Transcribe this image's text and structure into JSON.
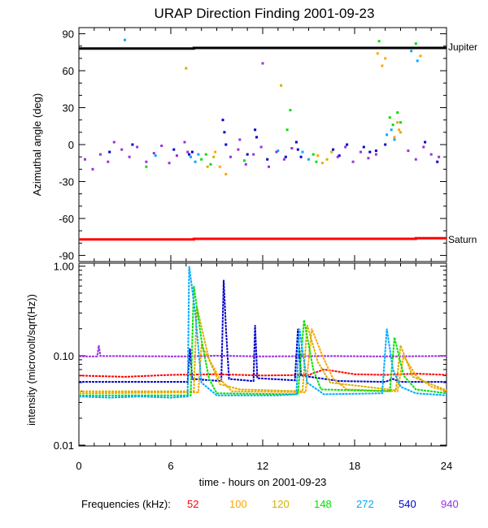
{
  "chart_data": [
    {
      "type": "scatter",
      "title": "URAP Direction Finding  2001-09-23",
      "ylabel": "Azimuthal angle (deg)",
      "xlabel": "",
      "xlim": [
        0,
        24
      ],
      "ylim": [
        -95,
        95
      ],
      "yticks": [
        90,
        60,
        30,
        0,
        -30,
        -60,
        -90
      ],
      "ytick_labels": [
        "90",
        "60",
        "30",
        "0",
        "-30",
        "-60",
        "-90"
      ],
      "reference_lines": [
        {
          "name": "Jupiter",
          "color": "#000000",
          "points": [
            [
              0,
              78
            ],
            [
              7.5,
              78
            ],
            [
              7.5,
              78.5
            ],
            [
              24,
              78.5
            ]
          ]
        },
        {
          "name": "Saturn",
          "color": "#ff0000",
          "points": [
            [
              0,
              -77
            ],
            [
              7.5,
              -77
            ],
            [
              7.5,
              -76.5
            ],
            [
              22,
              -76.5
            ],
            [
              22,
              -76
            ],
            [
              24,
              -76
            ]
          ]
        }
      ],
      "series": [
        {
          "name": "272",
          "color": "#00aaff",
          "points": [
            [
              3.0,
              85
            ],
            [
              7.3,
              -10
            ],
            [
              7.6,
              -14
            ],
            [
              7.8,
              -8
            ],
            [
              15.0,
              -12
            ],
            [
              14.6,
              -6
            ],
            [
              20.1,
              8
            ],
            [
              20.4,
              12
            ],
            [
              20.6,
              4
            ],
            [
              21.7,
              76
            ],
            [
              22.1,
              68
            ],
            [
              5.0,
              -9
            ],
            [
              13.0,
              -5
            ]
          ]
        },
        {
          "name": "148",
          "color": "#00e000",
          "points": [
            [
              8.0,
              -12
            ],
            [
              8.3,
              -8
            ],
            [
              8.6,
              -16
            ],
            [
              15.3,
              -8
            ],
            [
              15.5,
              -14
            ],
            [
              20.3,
              22
            ],
            [
              20.5,
              16
            ],
            [
              20.8,
              26
            ],
            [
              21.0,
              18
            ],
            [
              13.6,
              12
            ],
            [
              13.8,
              28
            ],
            [
              19.6,
              84
            ],
            [
              22.0,
              82
            ],
            [
              4.4,
              -18
            ],
            [
              10.8,
              -13
            ]
          ]
        },
        {
          "name": "100",
          "color": "#ffa500",
          "points": [
            [
              19.5,
              74
            ],
            [
              19.8,
              64
            ],
            [
              20.0,
              70
            ],
            [
              20.6,
              6
            ],
            [
              20.9,
              12
            ],
            [
              15.6,
              -9
            ],
            [
              15.9,
              -15
            ],
            [
              8.9,
              -6
            ],
            [
              9.2,
              -18
            ],
            [
              9.6,
              -24
            ],
            [
              22.3,
              72
            ]
          ]
        },
        {
          "name": "120",
          "color": "#d4b000",
          "points": [
            [
              20.8,
              18
            ],
            [
              21.0,
              10
            ],
            [
              8.4,
              -18
            ],
            [
              8.8,
              -10
            ],
            [
              16.2,
              -12
            ],
            [
              16.5,
              -6
            ],
            [
              7.0,
              62
            ],
            [
              13.2,
              48
            ]
          ]
        },
        {
          "name": "540",
          "color": "#0000cc",
          "points": [
            [
              7.2,
              -8
            ],
            [
              7.4,
              -6
            ],
            [
              9.4,
              20
            ],
            [
              9.5,
              10
            ],
            [
              9.6,
              0
            ],
            [
              11.5,
              12
            ],
            [
              11.6,
              6
            ],
            [
              14.3,
              -4
            ],
            [
              14.5,
              -10
            ],
            [
              14.2,
              2
            ],
            [
              16.6,
              -4
            ],
            [
              17.5,
              0
            ],
            [
              18.6,
              -2
            ],
            [
              19.0,
              -6
            ],
            [
              20.0,
              0
            ],
            [
              23.4,
              -14
            ],
            [
              12.3,
              -12
            ],
            [
              3.5,
              0
            ],
            [
              6.2,
              -4
            ],
            [
              17.0,
              -9
            ],
            [
              19.4,
              -5
            ],
            [
              22.6,
              2
            ],
            [
              11.0,
              -8
            ],
            [
              13.5,
              -10
            ],
            [
              2.0,
              -6
            ]
          ]
        },
        {
          "name": "940",
          "color": "#9a30e0",
          "points": [
            [
              0.4,
              -12
            ],
            [
              0.9,
              -20
            ],
            [
              1.4,
              -8
            ],
            [
              1.9,
              -14
            ],
            [
              2.3,
              2
            ],
            [
              2.8,
              -4
            ],
            [
              3.3,
              -10
            ],
            [
              3.8,
              -2
            ],
            [
              4.4,
              -14
            ],
            [
              4.9,
              -7
            ],
            [
              5.4,
              -1
            ],
            [
              5.9,
              -15
            ],
            [
              6.4,
              -9
            ],
            [
              6.9,
              2
            ],
            [
              7.1,
              -6
            ],
            [
              9.9,
              -10
            ],
            [
              10.4,
              -4
            ],
            [
              10.9,
              -16
            ],
            [
              11.4,
              -8
            ],
            [
              11.9,
              -2
            ],
            [
              12.4,
              -18
            ],
            [
              12.9,
              -6
            ],
            [
              13.4,
              -12
            ],
            [
              13.9,
              -3
            ],
            [
              16.9,
              -10
            ],
            [
              17.4,
              -2
            ],
            [
              17.9,
              -14
            ],
            [
              18.4,
              -6
            ],
            [
              18.9,
              -11
            ],
            [
              19.4,
              -8
            ],
            [
              21.5,
              -5
            ],
            [
              22.0,
              -12
            ],
            [
              22.5,
              -2
            ],
            [
              23.0,
              -8
            ],
            [
              23.5,
              -10
            ],
            [
              12.0,
              66
            ],
            [
              10.5,
              4
            ]
          ]
        },
        {
          "name": "52",
          "color": "#ff0000",
          "points": []
        }
      ],
      "labels": [
        "Jupiter",
        "Saturn"
      ]
    },
    {
      "type": "line",
      "title": "",
      "ylabel": "intensity (microvolt/sqrt(Hz))",
      "xlabel": "time - hours on 2001-09-23",
      "xlim": [
        0,
        24
      ],
      "xticks": [
        0,
        6,
        12,
        18,
        24
      ],
      "ylim": [
        0.01,
        1.0
      ],
      "yscale": "log",
      "yticks": [
        1.0,
        0.1,
        0.01
      ],
      "ytick_labels": [
        "1.00",
        "0.10",
        "0.01"
      ],
      "series": [
        {
          "name": "940",
          "color": "#9a30e0",
          "points": [
            [
              0,
              0.098
            ],
            [
              1.2,
              0.098
            ],
            [
              1.3,
              0.13
            ],
            [
              1.4,
              0.099
            ],
            [
              7.0,
              0.098
            ],
            [
              9.0,
              0.1
            ],
            [
              12.0,
              0.098
            ],
            [
              16.0,
              0.099
            ],
            [
              20.0,
              0.098
            ],
            [
              24,
              0.099
            ]
          ]
        },
        {
          "name": "52",
          "color": "#ff0000",
          "points": [
            [
              0,
              0.06
            ],
            [
              3,
              0.058
            ],
            [
              6,
              0.061
            ],
            [
              9,
              0.062
            ],
            [
              12,
              0.06
            ],
            [
              15,
              0.061
            ],
            [
              16,
              0.07
            ],
            [
              17,
              0.066
            ],
            [
              18,
              0.062
            ],
            [
              20,
              0.061
            ],
            [
              22,
              0.063
            ],
            [
              24,
              0.061
            ]
          ]
        },
        {
          "name": "540",
          "color": "#0000cc",
          "points": [
            [
              0,
              0.051
            ],
            [
              7.1,
              0.051
            ],
            [
              7.25,
              0.12
            ],
            [
              7.4,
              0.055
            ],
            [
              9.3,
              0.052
            ],
            [
              9.45,
              0.7
            ],
            [
              9.6,
              0.2
            ],
            [
              9.8,
              0.055
            ],
            [
              11.4,
              0.052
            ],
            [
              11.5,
              0.22
            ],
            [
              11.65,
              0.056
            ],
            [
              14.1,
              0.053
            ],
            [
              14.3,
              0.2
            ],
            [
              14.5,
              0.06
            ],
            [
              17,
              0.052
            ],
            [
              20,
              0.051
            ],
            [
              20.5,
              0.055
            ],
            [
              21,
              0.051
            ],
            [
              24,
              0.051
            ]
          ]
        },
        {
          "name": "100",
          "color": "#ffa500",
          "points": [
            [
              0,
              0.038
            ],
            [
              7.8,
              0.039
            ],
            [
              8.0,
              0.13
            ],
            [
              8.6,
              0.085
            ],
            [
              9.2,
              0.055
            ],
            [
              10,
              0.04
            ],
            [
              14.8,
              0.039
            ],
            [
              15.2,
              0.2
            ],
            [
              15.9,
              0.1
            ],
            [
              16.6,
              0.055
            ],
            [
              17.5,
              0.042
            ],
            [
              20.8,
              0.04
            ],
            [
              21.2,
              0.1
            ],
            [
              22,
              0.06
            ],
            [
              23,
              0.045
            ],
            [
              24,
              0.04
            ]
          ]
        },
        {
          "name": "120",
          "color": "#d4b000",
          "points": [
            [
              0,
              0.04
            ],
            [
              7.5,
              0.04
            ],
            [
              7.7,
              0.35
            ],
            [
              8.5,
              0.09
            ],
            [
              9.2,
              0.048
            ],
            [
              10.5,
              0.042
            ],
            [
              14.6,
              0.04
            ],
            [
              14.9,
              0.22
            ],
            [
              15.6,
              0.085
            ],
            [
              16.4,
              0.05
            ],
            [
              20.7,
              0.041
            ],
            [
              21.0,
              0.13
            ],
            [
              21.8,
              0.058
            ],
            [
              24,
              0.041
            ]
          ]
        },
        {
          "name": "148",
          "color": "#00e000",
          "points": [
            [
              0,
              0.036
            ],
            [
              7.3,
              0.036
            ],
            [
              7.5,
              0.6
            ],
            [
              8.0,
              0.15
            ],
            [
              8.5,
              0.055
            ],
            [
              9.0,
              0.038
            ],
            [
              14.3,
              0.037
            ],
            [
              14.7,
              0.25
            ],
            [
              15.3,
              0.07
            ],
            [
              15.8,
              0.042
            ],
            [
              20.3,
              0.04
            ],
            [
              20.6,
              0.16
            ],
            [
              21.2,
              0.06
            ],
            [
              22,
              0.042
            ],
            [
              24,
              0.038
            ]
          ]
        },
        {
          "name": "272",
          "color": "#00aaff",
          "points": [
            [
              0,
              0.035
            ],
            [
              2,
              0.034
            ],
            [
              4,
              0.035
            ],
            [
              6,
              0.034
            ],
            [
              7.1,
              0.035
            ],
            [
              7.2,
              1.0
            ],
            [
              7.6,
              0.3
            ],
            [
              8.0,
              0.05
            ],
            [
              9.0,
              0.036
            ],
            [
              13.0,
              0.036
            ],
            [
              14.2,
              0.037
            ],
            [
              14.4,
              0.2
            ],
            [
              14.9,
              0.05
            ],
            [
              16,
              0.037
            ],
            [
              19.8,
              0.038
            ],
            [
              20.1,
              0.2
            ],
            [
              20.5,
              0.07
            ],
            [
              21.0,
              0.045
            ],
            [
              22,
              0.038
            ],
            [
              24,
              0.036
            ]
          ]
        }
      ]
    }
  ],
  "legend": {
    "label": "Frequencies (kHz):",
    "items": [
      {
        "value": "52",
        "color": "#ff0000"
      },
      {
        "value": "100",
        "color": "#ffa500"
      },
      {
        "value": "120",
        "color": "#d4b000"
      },
      {
        "value": "148",
        "color": "#00e000"
      },
      {
        "value": "272",
        "color": "#00aaff"
      },
      {
        "value": "540",
        "color": "#0000cc"
      },
      {
        "value": "940",
        "color": "#9a30e0"
      }
    ]
  }
}
